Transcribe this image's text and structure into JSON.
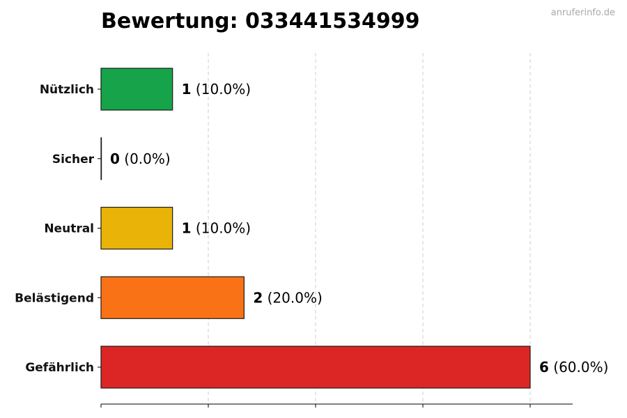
{
  "watermark": "anruferinfo.de",
  "chart_data": {
    "type": "bar",
    "orientation": "horizontal",
    "title": "Bewertung: 033441534999",
    "categories": [
      "Nützlich",
      "Sicher",
      "Neutral",
      "Belästigend",
      "Gefährlich"
    ],
    "values": [
      1,
      0,
      1,
      2,
      6
    ],
    "percent_labels": [
      "(10.0%)",
      "(0.0%)",
      "(10.0%)",
      "(20.0%)",
      "(60.0%)"
    ],
    "colors": [
      "#16a34a",
      "#22c55e",
      "#eab308",
      "#f97316",
      "#dc2626"
    ],
    "xlim": [
      0,
      6.6
    ],
    "grid": true,
    "xlabel": "",
    "ylabel": ""
  }
}
